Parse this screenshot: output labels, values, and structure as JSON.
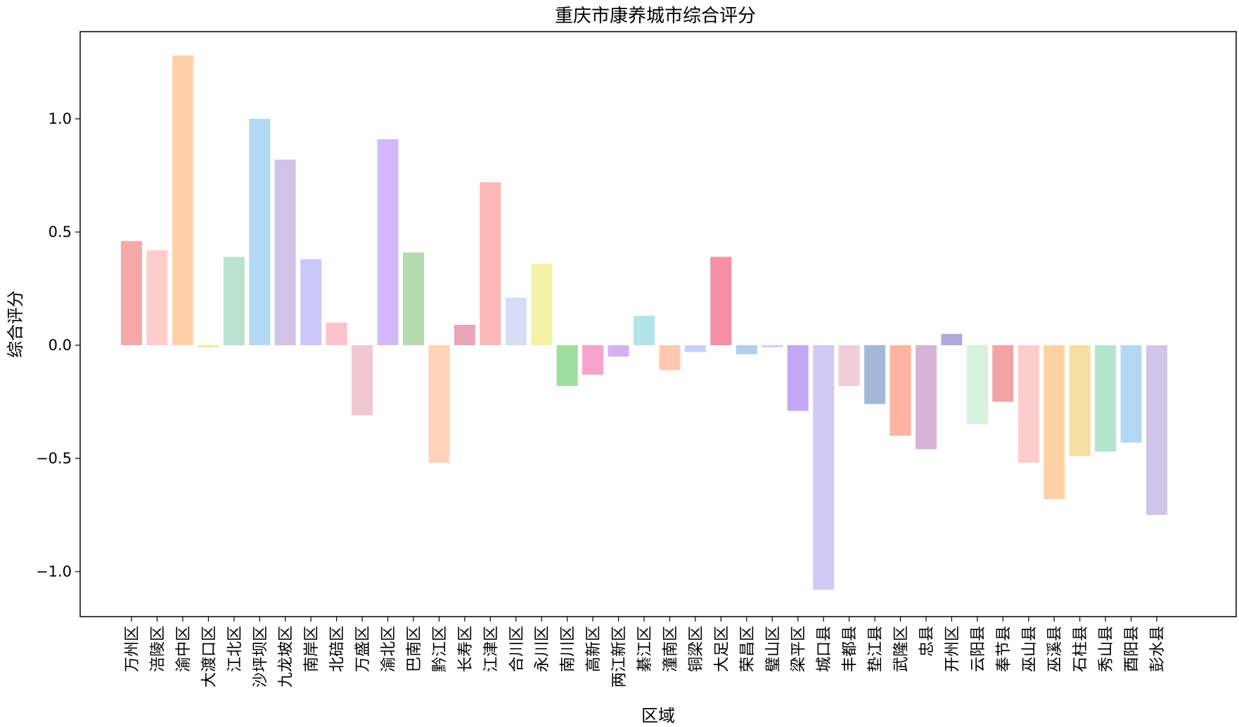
{
  "chart_data": {
    "type": "bar",
    "title": "重庆市康养城市综合评分",
    "xlabel": "区域",
    "ylabel": "综合评分",
    "ylim": [
      -1.2,
      1.4
    ],
    "yticks": [
      -1.0,
      -0.5,
      0.0,
      0.5,
      1.0
    ],
    "ytick_labels": [
      "−1.0",
      "−0.5",
      "0.0",
      "0.5",
      "1.0"
    ],
    "grid": false,
    "categories": [
      "万州区",
      "涪陵区",
      "渝中区",
      "大渡口区",
      "江北区",
      "沙坪坝区",
      "九龙坡区",
      "南岸区",
      "北碚区",
      "万盛区",
      "渝北区",
      "巴南区",
      "黔江区",
      "长寿区",
      "江津区",
      "合川区",
      "永川区",
      "南川区",
      "高新区",
      "两江新区",
      "綦江区",
      "潼南区",
      "铜梁区",
      "大足区",
      "荣昌区",
      "璧山区",
      "梁平区",
      "城口县",
      "丰都县",
      "垫江县",
      "武隆区",
      "忠县",
      "开州区",
      "云阳县",
      "奉节县",
      "巫山县",
      "巫溪县",
      "石柱县",
      "秀山县",
      "酉阳县",
      "彭水县"
    ],
    "values": [
      0.46,
      0.42,
      1.28,
      -0.01,
      0.39,
      1.0,
      0.82,
      0.38,
      0.1,
      -0.31,
      0.91,
      0.41,
      -0.52,
      0.09,
      0.72,
      0.21,
      0.36,
      -0.18,
      -0.13,
      -0.05,
      0.13,
      -0.11,
      -0.03,
      0.39,
      -0.04,
      -0.01,
      -0.29,
      -1.08,
      -0.18,
      -0.26,
      -0.4,
      -0.46,
      0.05,
      -0.35,
      -0.25,
      -0.52,
      -0.68,
      -0.49,
      -0.47,
      -0.43,
      -0.75
    ],
    "colors": [
      "#f4a9a8",
      "#ffcccc",
      "#ffd1a9",
      "#f7e1a0",
      "#b8e3cc",
      "#b3d9f2",
      "#d2c4e8",
      "#c8c8fa",
      "#ffc2c9",
      "#f0c8d4",
      "#d5b8fa",
      "#b5dbb0",
      "#ffd3b8",
      "#e8a6b8",
      "#ffb8b8",
      "#d6dcf5",
      "#f4f2a4",
      "#9fdd9f",
      "#f5a3cc",
      "#d4b0f2",
      "#b3e5e8",
      "#ffc9b0",
      "#c9d0fa",
      "#f58fa3",
      "#b3cdea",
      "#e4c7f0",
      "#c6a7f5",
      "#d0c8f5",
      "#f2ccd6",
      "#a3b8d9",
      "#ffb3a3",
      "#d8b3d8",
      "#b0a8d8",
      "#d4f2dc",
      "#f2a3a3",
      "#ffcccc",
      "#ffd1a3",
      "#f5dfa3",
      "#b3e5cc",
      "#b3d9f2",
      "#d2c4e8"
    ]
  }
}
